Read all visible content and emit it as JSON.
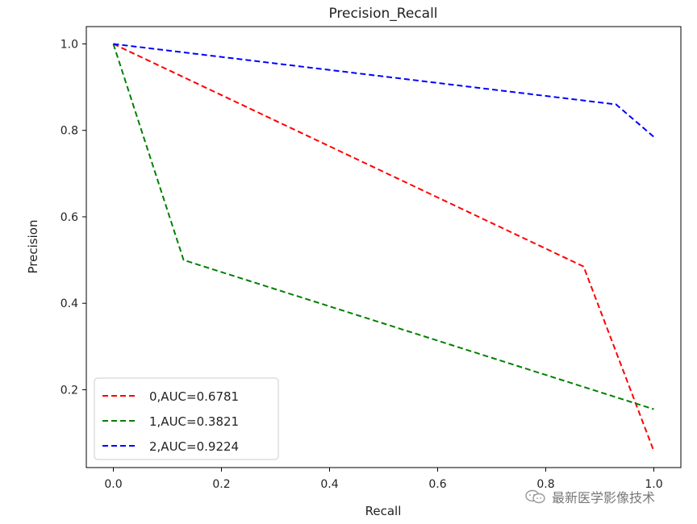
{
  "chart_data": {
    "type": "line",
    "title": "Precision_Recall",
    "xlabel": "Recall",
    "ylabel": "Precision",
    "xlim": [
      -0.05,
      1.05
    ],
    "ylim": [
      0.02,
      1.04
    ],
    "xticks": [
      0.0,
      0.2,
      0.4,
      0.6,
      0.8,
      1.0
    ],
    "yticks": [
      0.2,
      0.4,
      0.6,
      0.8,
      1.0
    ],
    "grid": false,
    "legend_position": "lower-left",
    "series": [
      {
        "name": "0,AUC=0.6781",
        "color": "#ff0000",
        "style": "dashed",
        "x": [
          0.0,
          0.87,
          1.0
        ],
        "y": [
          1.0,
          0.485,
          0.058
        ]
      },
      {
        "name": "1,AUC=0.3821",
        "color": "#008000",
        "style": "dashed",
        "x": [
          0.0,
          0.13,
          1.0
        ],
        "y": [
          1.0,
          0.5,
          0.155
        ]
      },
      {
        "name": "2,AUC=0.9224",
        "color": "#0000ff",
        "style": "dashed",
        "x": [
          0.0,
          0.93,
          1.0
        ],
        "y": [
          1.0,
          0.86,
          0.785
        ]
      }
    ]
  },
  "watermark": {
    "text": "最新医学影像技术",
    "icon": "wechat-icon"
  }
}
